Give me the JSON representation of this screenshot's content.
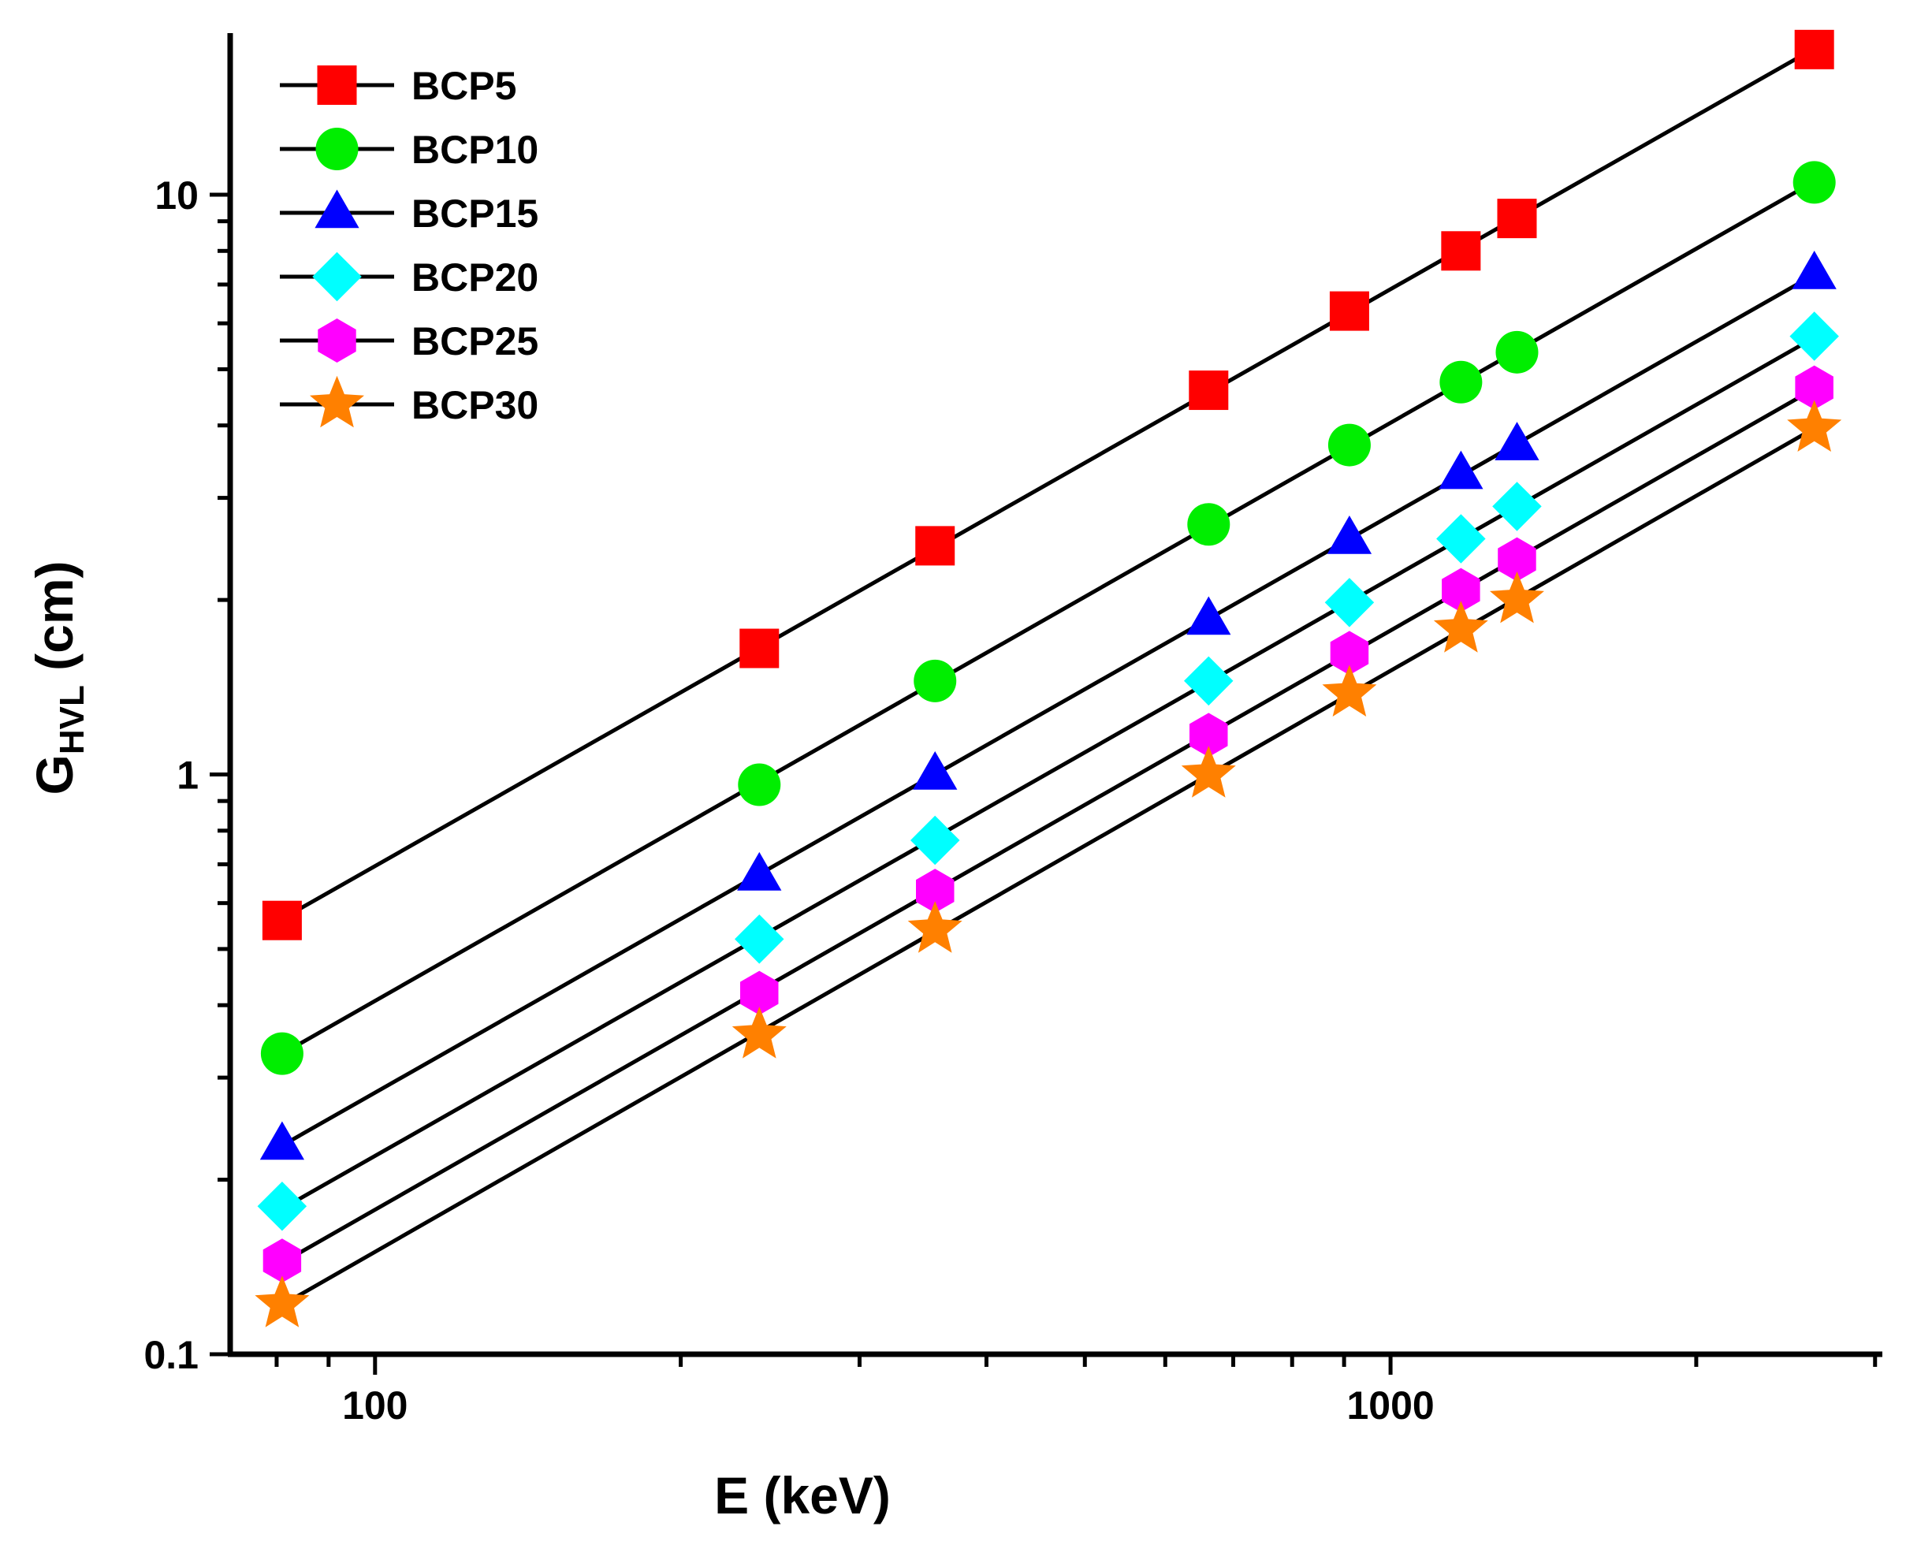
{
  "chart_data": {
    "type": "line",
    "title": "",
    "xlabel": "E (keV)",
    "ylabel": {
      "main": "G",
      "sub": "HVL",
      "unit": " (cm)"
    },
    "xscale": "log",
    "yscale": "log",
    "xlim": [
      72,
      3050
    ],
    "ylim": [
      0.1,
      19
    ],
    "grid": false,
    "legend_position": "top-left",
    "x_tick_labels": [
      {
        "value": 100,
        "label": "100"
      },
      {
        "value": 1000,
        "label": "1000"
      }
    ],
    "y_tick_labels": [
      {
        "value": 0.1,
        "label": "0.1"
      },
      {
        "value": 1,
        "label": "1"
      },
      {
        "value": 10,
        "label": "10"
      }
    ],
    "x": [
      81,
      239,
      356,
      662,
      911,
      1173,
      1332,
      2614
    ],
    "series": [
      {
        "name": "BCP5",
        "marker": "square",
        "color": "#ff0000",
        "values": [
          0.56,
          1.65,
          2.48,
          4.6,
          6.3,
          8.0,
          9.1,
          17.8
        ]
      },
      {
        "name": "BCP10",
        "marker": "circle",
        "color": "#00ee00",
        "values": [
          0.33,
          0.96,
          1.45,
          2.7,
          3.7,
          4.75,
          5.35,
          10.5
        ]
      },
      {
        "name": "BCP15",
        "marker": "triangle",
        "color": "#0000ff",
        "values": [
          0.23,
          0.67,
          1.0,
          1.85,
          2.55,
          3.3,
          3.7,
          7.3
        ]
      },
      {
        "name": "BCP20",
        "marker": "diamond",
        "color": "#00ffff",
        "values": [
          0.18,
          0.52,
          0.77,
          1.45,
          1.98,
          2.55,
          2.9,
          5.7
        ]
      },
      {
        "name": "BCP25",
        "marker": "hexagon",
        "color": "#ff00ff",
        "values": [
          0.145,
          0.42,
          0.63,
          1.17,
          1.62,
          2.08,
          2.35,
          4.65
        ]
      },
      {
        "name": "BCP30",
        "marker": "star",
        "color": "#ff8000",
        "values": [
          0.122,
          0.355,
          0.54,
          1.0,
          1.38,
          1.78,
          2.0,
          3.95
        ]
      }
    ]
  }
}
